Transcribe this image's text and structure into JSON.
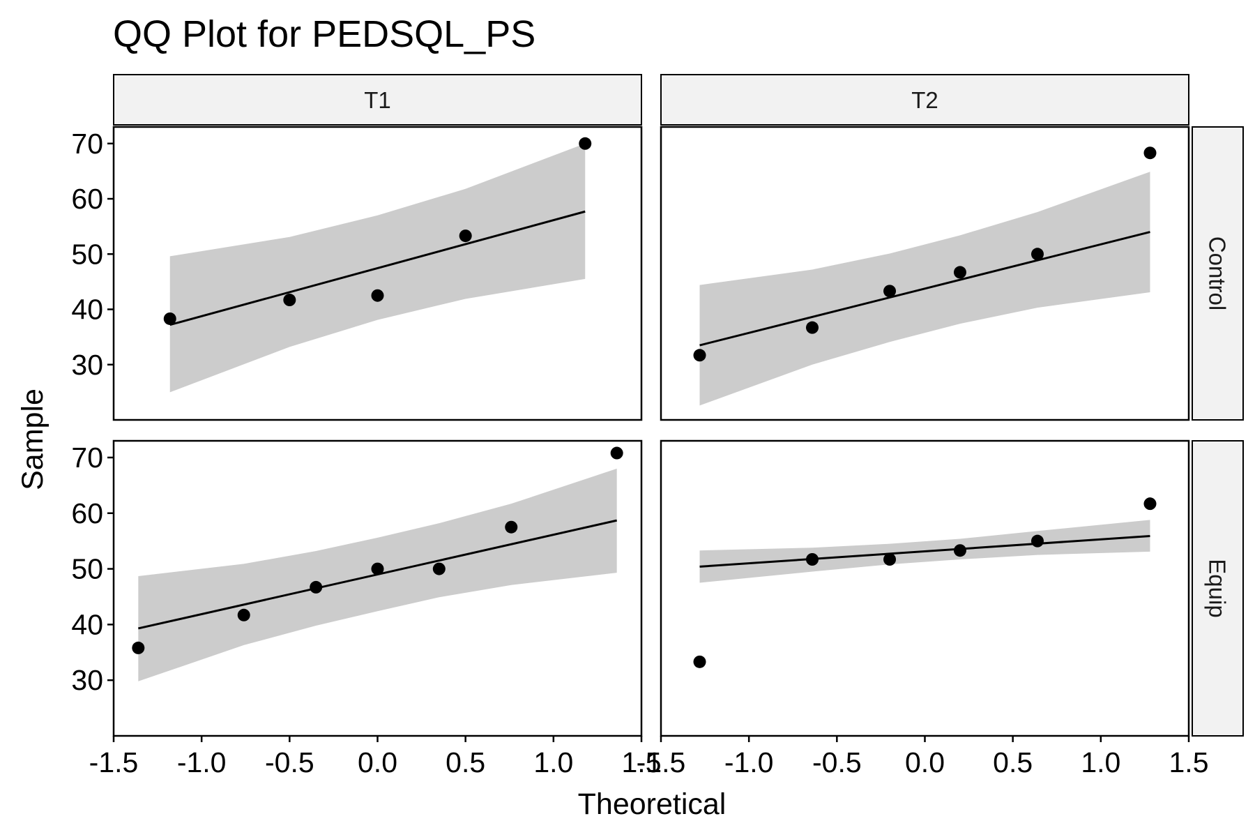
{
  "chart_data": {
    "type": "scatter",
    "title": "QQ Plot for PEDSQL_PS",
    "xlabel": "Theoretical",
    "ylabel": "Sample",
    "xlim": [
      -1.5,
      1.5
    ],
    "ylim": [
      20,
      73
    ],
    "x_ticks": [
      "-1.5",
      "-1.0",
      "-0.5",
      "0.0",
      "0.5",
      "1.0",
      "1.5"
    ],
    "y_ticks": [
      "30",
      "40",
      "50",
      "60",
      "70"
    ],
    "x_tick_values": [
      -1.5,
      -1.0,
      -0.5,
      0.0,
      0.5,
      1.0,
      1.5
    ],
    "y_tick_values": [
      30,
      40,
      50,
      60,
      70
    ],
    "columns": [
      "T1",
      "T2"
    ],
    "rows": [
      "Control",
      "Equip"
    ],
    "grid": false,
    "legend": "none",
    "panels": [
      {
        "column": "T1",
        "row": "Control",
        "points": [
          {
            "x": -1.18,
            "y": 38.3
          },
          {
            "x": -0.5,
            "y": 41.7
          },
          {
            "x": 0.0,
            "y": 42.5
          },
          {
            "x": 0.5,
            "y": 53.3
          },
          {
            "x": 1.18,
            "y": 70.0
          }
        ],
        "line": [
          {
            "x": -1.18,
            "y": 37.2
          },
          {
            "x": 1.18,
            "y": 57.7
          }
        ],
        "band": [
          {
            "x": -1.18,
            "lo": 25.0,
            "hi": 49.6
          },
          {
            "x": -0.5,
            "lo": 33.2,
            "hi": 53.1
          },
          {
            "x": 0.0,
            "lo": 38.1,
            "hi": 57.0
          },
          {
            "x": 0.5,
            "lo": 41.9,
            "hi": 61.8
          },
          {
            "x": 1.18,
            "lo": 45.5,
            "hi": 70.0
          }
        ]
      },
      {
        "column": "T2",
        "row": "Control",
        "points": [
          {
            "x": -1.28,
            "y": 31.7
          },
          {
            "x": -0.64,
            "y": 36.7
          },
          {
            "x": -0.2,
            "y": 43.3
          },
          {
            "x": 0.2,
            "y": 46.7
          },
          {
            "x": 0.64,
            "y": 50.0
          },
          {
            "x": 1.28,
            "y": 68.3
          }
        ],
        "line": [
          {
            "x": -1.28,
            "y": 33.5
          },
          {
            "x": 1.28,
            "y": 54.0
          }
        ],
        "band": [
          {
            "x": -1.28,
            "lo": 22.6,
            "hi": 44.4
          },
          {
            "x": -0.64,
            "lo": 30.0,
            "hi": 47.2
          },
          {
            "x": -0.2,
            "lo": 34.1,
            "hi": 50.1
          },
          {
            "x": 0.2,
            "lo": 37.4,
            "hi": 53.4
          },
          {
            "x": 0.64,
            "lo": 40.3,
            "hi": 57.6
          },
          {
            "x": 1.28,
            "lo": 43.1,
            "hi": 64.9
          }
        ]
      },
      {
        "column": "T1",
        "row": "Equip",
        "points": [
          {
            "x": -1.36,
            "y": 35.8
          },
          {
            "x": -0.76,
            "y": 41.7
          },
          {
            "x": -0.35,
            "y": 46.7
          },
          {
            "x": 0.0,
            "y": 50.0
          },
          {
            "x": 0.35,
            "y": 50.0
          },
          {
            "x": 0.76,
            "y": 57.5
          },
          {
            "x": 1.36,
            "y": 70.8
          }
        ],
        "line": [
          {
            "x": -1.36,
            "y": 39.3
          },
          {
            "x": 1.36,
            "y": 58.7
          }
        ],
        "band": [
          {
            "x": -1.36,
            "lo": 29.8,
            "hi": 48.7
          },
          {
            "x": -0.76,
            "lo": 36.3,
            "hi": 50.9
          },
          {
            "x": -0.35,
            "lo": 39.8,
            "hi": 53.2
          },
          {
            "x": 0.0,
            "lo": 42.4,
            "hi": 55.6
          },
          {
            "x": 0.35,
            "lo": 44.9,
            "hi": 58.2
          },
          {
            "x": 0.76,
            "lo": 47.1,
            "hi": 61.7
          },
          {
            "x": 1.36,
            "lo": 49.3,
            "hi": 68.0
          }
        ]
      },
      {
        "column": "T2",
        "row": "Equip",
        "points": [
          {
            "x": -1.28,
            "y": 33.3
          },
          {
            "x": -0.64,
            "y": 51.7
          },
          {
            "x": -0.2,
            "y": 51.7
          },
          {
            "x": 0.2,
            "y": 53.3
          },
          {
            "x": 0.64,
            "y": 55.0
          },
          {
            "x": 1.28,
            "y": 61.7
          }
        ],
        "line": [
          {
            "x": -1.28,
            "y": 50.4
          },
          {
            "x": 1.28,
            "y": 55.9
          }
        ],
        "band": [
          {
            "x": -1.28,
            "lo": 47.5,
            "hi": 53.3
          },
          {
            "x": -0.64,
            "lo": 49.5,
            "hi": 53.8
          },
          {
            "x": -0.2,
            "lo": 50.8,
            "hi": 54.5
          },
          {
            "x": 0.2,
            "lo": 51.7,
            "hi": 55.4
          },
          {
            "x": 0.64,
            "lo": 52.5,
            "hi": 56.8
          },
          {
            "x": 1.28,
            "lo": 53.1,
            "hi": 58.8
          }
        ]
      }
    ],
    "colors": {
      "point": "#000000",
      "line": "#000000",
      "band": "#cccccc",
      "strip_fill": "#f2f2f2",
      "border": "#000000"
    }
  }
}
